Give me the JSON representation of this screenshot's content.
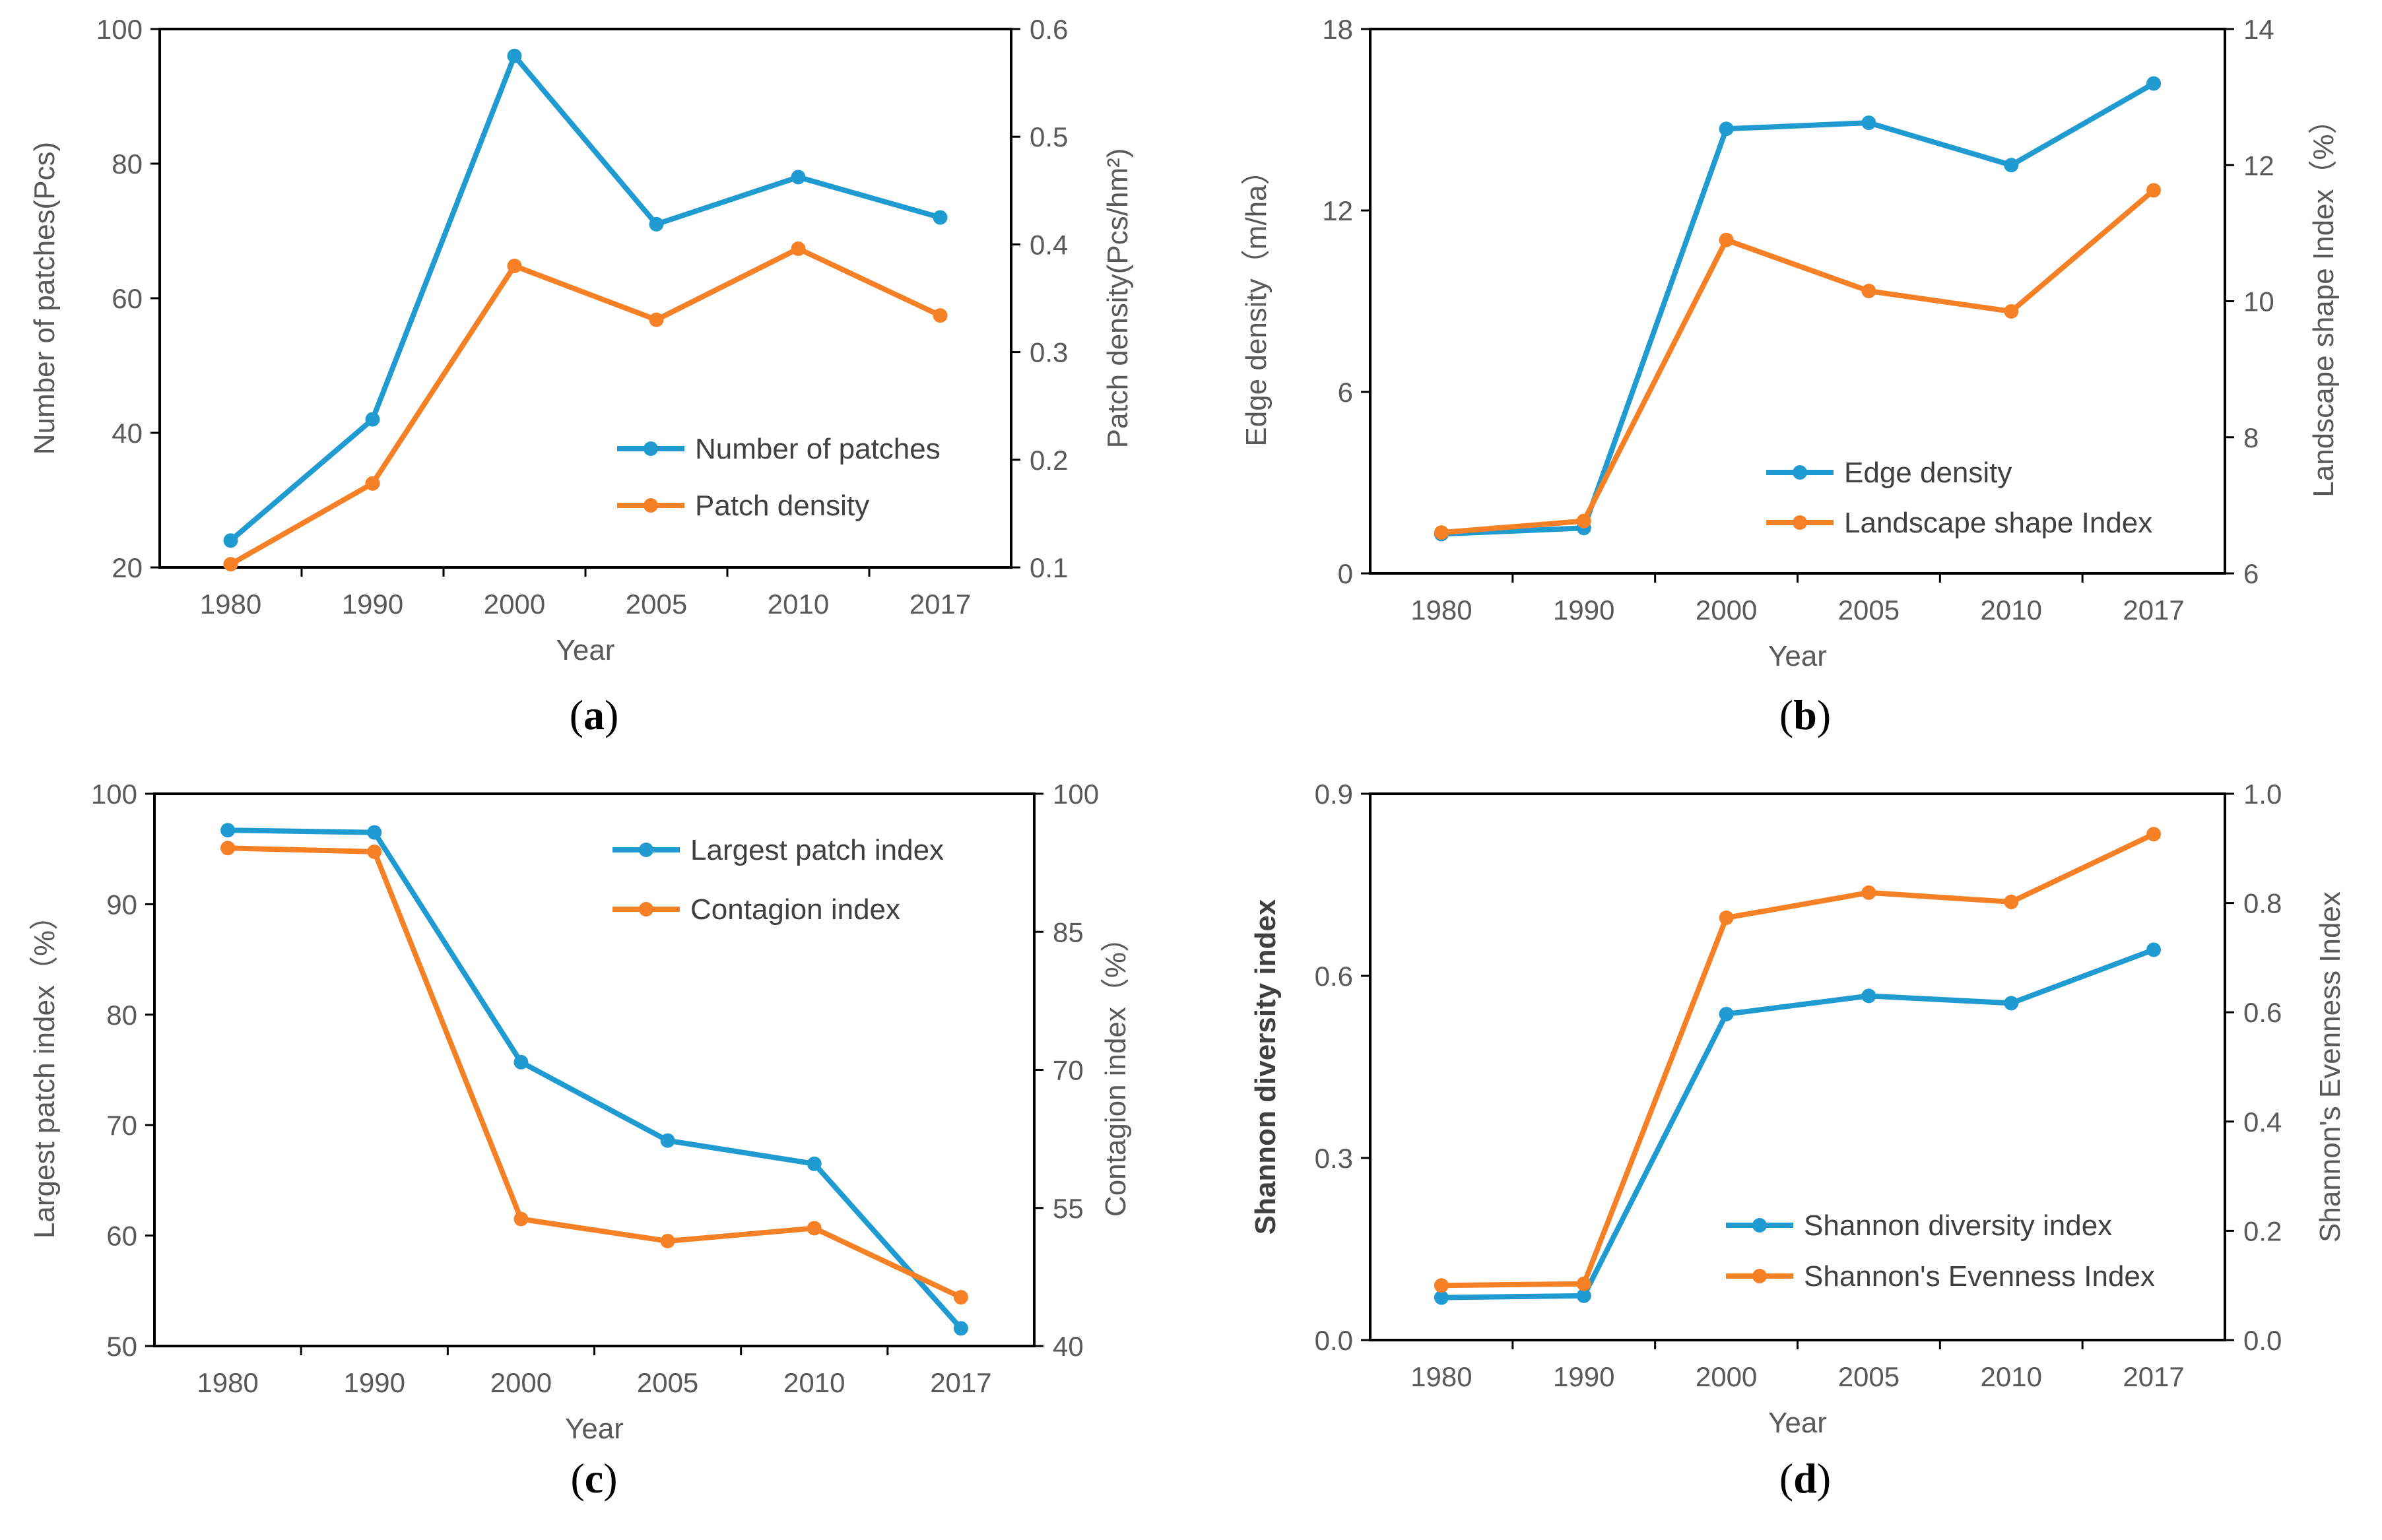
{
  "colors": {
    "series1": "#1f9bd2",
    "series2": "#f58025",
    "axis": "#000000",
    "text": "#595959"
  },
  "chart_data": [
    {
      "type": "line",
      "panel": "a",
      "caption": {
        "open": "(",
        "letter": "a",
        "close": ")"
      },
      "categories": [
        "1980",
        "1990",
        "2000",
        "2005",
        "2010",
        "2017"
      ],
      "xlabel": "Year",
      "ylabel": "Number of patches(Pcs)",
      "y2label": "Patch density(Pcs/hm²)",
      "ylim": [
        20,
        100
      ],
      "yticks": [
        "20",
        "40",
        "60",
        "80",
        "100"
      ],
      "y2lim": [
        0.1,
        0.6
      ],
      "y2ticks": [
        "0.1",
        "0.2",
        "0.3",
        "0.4",
        "0.5",
        "0.6"
      ],
      "legend_position": "lower-right",
      "series": [
        {
          "name": "Number of patches",
          "axis": "left",
          "values": [
            24,
            42,
            96,
            71,
            78,
            72
          ]
        },
        {
          "name": "Patch density",
          "axis": "right",
          "values": [
            0.103,
            0.178,
            0.38,
            0.33,
            0.396,
            0.334
          ]
        }
      ]
    },
    {
      "type": "line",
      "panel": "b",
      "caption": {
        "open": "(",
        "letter": "b",
        "close": ")"
      },
      "categories": [
        "1980",
        "1990",
        "2000",
        "2005",
        "2010",
        "2017"
      ],
      "xlabel": "Year",
      "ylabel": "Edge density（m/ha）",
      "y2label": "Landscape shape Index（%）",
      "ylim": [
        0,
        18
      ],
      "yticks": [
        "0",
        "6",
        "12",
        "18"
      ],
      "y2lim": [
        6,
        14
      ],
      "y2ticks": [
        "6",
        "8",
        "10",
        "12",
        "14"
      ],
      "legend_position": "lower-right",
      "series": [
        {
          "name": "Edge density",
          "axis": "left",
          "values": [
            1.3,
            1.5,
            14.7,
            14.9,
            13.5,
            16.2
          ]
        },
        {
          "name": "Landscape shape Index",
          "axis": "right",
          "values": [
            6.6,
            6.77,
            10.9,
            10.15,
            9.85,
            11.63
          ]
        }
      ]
    },
    {
      "type": "line",
      "panel": "c",
      "caption": {
        "open": "(",
        "letter": "c",
        "close": ")"
      },
      "categories": [
        "1980",
        "1990",
        "2000",
        "2005",
        "2010",
        "2017"
      ],
      "xlabel": "Year",
      "ylabel": "Largest patch index（%）",
      "y2label": "Contagion index（%）",
      "ylim": [
        50,
        100
      ],
      "yticks": [
        "50",
        "60",
        "70",
        "80",
        "90",
        "100"
      ],
      "y2lim": [
        40,
        100
      ],
      "y2ticks": [
        "40",
        "55",
        "70",
        "85",
        "100"
      ],
      "legend_position": "upper-right",
      "series": [
        {
          "name": "Largest patch index",
          "axis": "left",
          "values": [
            96.7,
            96.5,
            75.7,
            68.6,
            66.5,
            51.6
          ]
        },
        {
          "name": "Contagion index",
          "axis": "right",
          "values": [
            94.1,
            93.7,
            53.8,
            51.4,
            52.8,
            45.3
          ]
        }
      ]
    },
    {
      "type": "line",
      "panel": "d",
      "caption": {
        "open": "(",
        "letter": "d",
        "close": ")"
      },
      "categories": [
        "1980",
        "1990",
        "2000",
        "2005",
        "2010",
        "2017"
      ],
      "xlabel": "Year",
      "ylabel": "Shannon diversity index",
      "y2label": "Shannon's Evenness Index",
      "ylim": [
        0,
        0.9
      ],
      "yticks": [
        "0.0",
        "0.3",
        "0.6",
        "0.9"
      ],
      "y2lim": [
        0,
        1.0
      ],
      "y2ticks": [
        "0.0",
        "0.2",
        "0.4",
        "0.6",
        "0.8",
        "1.0"
      ],
      "legend_position": "lower-right",
      "series": [
        {
          "name": "Shannon diversity index",
          "axis": "left",
          "values": [
            0.07,
            0.073,
            0.537,
            0.567,
            0.555,
            0.643
          ]
        },
        {
          "name": "Shannon's Evenness Index",
          "axis": "right",
          "values": [
            0.1,
            0.103,
            0.773,
            0.819,
            0.802,
            0.926
          ]
        }
      ]
    }
  ]
}
